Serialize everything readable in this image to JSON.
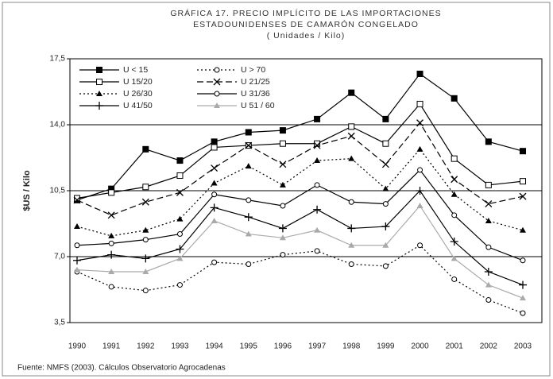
{
  "chart_data": {
    "type": "line",
    "title": [
      "GRÁFICA 17. PRECIO IMPLÍCITO DE LAS IMPORTACIONES",
      "ESTADOUNIDENSES DE CAMARÓN CONGELADO",
      "( Unidades / Kilo)"
    ],
    "y_label": "$US / Kilo",
    "source": "Fuente: NMFS (2003). Cálculos Observatorio Agrocadenas",
    "categories": [
      "1990",
      "1991",
      "1992",
      "1993",
      "1994",
      "1995",
      "1996",
      "1997",
      "1998",
      "1999",
      "2000",
      "2001",
      "2002",
      "2003"
    ],
    "ylim": [
      3.5,
      17.5
    ],
    "yticks": [
      {
        "value": 3.5,
        "label": "3,5"
      },
      {
        "value": 7.0,
        "label": "7,0"
      },
      {
        "value": 10.5,
        "label": "10,5"
      },
      {
        "value": 14.0,
        "label": "14,0"
      },
      {
        "value": 17.5,
        "label": "17,5"
      }
    ],
    "grid": true,
    "legend": "top-left",
    "series": [
      {
        "name": "U < 15",
        "color": "#000000",
        "dash": "",
        "marker": "square-filled",
        "values": [
          10.0,
          10.6,
          12.7,
          12.1,
          13.1,
          13.6,
          13.7,
          14.3,
          15.7,
          14.3,
          16.7,
          15.4,
          13.1,
          12.6
        ]
      },
      {
        "name": "U > 70",
        "color": "#000000",
        "dash": "2,3",
        "marker": "circle-open",
        "values": [
          6.2,
          5.4,
          5.2,
          5.5,
          6.7,
          6.6,
          7.1,
          7.3,
          6.6,
          6.5,
          7.6,
          5.8,
          4.7,
          4.0
        ]
      },
      {
        "name": "U 15/20",
        "color": "#000000",
        "dash": "",
        "marker": "square-open",
        "values": [
          10.1,
          10.4,
          10.7,
          11.3,
          12.8,
          12.9,
          13.0,
          13.0,
          13.9,
          13.0,
          15.1,
          12.2,
          10.8,
          11.0
        ]
      },
      {
        "name": "U 21/25",
        "color": "#000000",
        "dash": "8,4",
        "marker": "x",
        "values": [
          10.0,
          9.2,
          9.9,
          10.4,
          11.7,
          12.9,
          11.9,
          12.9,
          13.4,
          11.9,
          14.1,
          11.1,
          9.8,
          10.2
        ]
      },
      {
        "name": "U 26/30",
        "color": "#000000",
        "dash": "2,3",
        "marker": "triangle-filled",
        "values": [
          8.6,
          8.1,
          8.4,
          9.0,
          10.9,
          11.8,
          10.8,
          12.1,
          12.2,
          10.6,
          12.7,
          10.3,
          8.9,
          8.4
        ]
      },
      {
        "name": "U 31/36",
        "color": "#000000",
        "dash": "",
        "marker": "circle-open",
        "values": [
          7.6,
          7.7,
          7.9,
          8.2,
          10.3,
          10.0,
          9.7,
          10.8,
          9.9,
          9.8,
          11.6,
          9.2,
          7.5,
          6.8
        ]
      },
      {
        "name": "U 41/50",
        "color": "#000000",
        "dash": "",
        "marker": "plus",
        "values": [
          6.8,
          7.1,
          6.9,
          7.4,
          9.6,
          9.1,
          8.5,
          9.5,
          8.5,
          8.6,
          10.5,
          7.8,
          6.2,
          5.5
        ]
      },
      {
        "name": "U 51 / 60",
        "color": "#aaaaaa",
        "dash": "",
        "marker": "triangle-filled",
        "values": [
          6.3,
          6.2,
          6.2,
          6.9,
          8.9,
          8.2,
          8.0,
          8.4,
          7.6,
          7.6,
          9.7,
          6.9,
          5.5,
          4.8
        ]
      }
    ]
  }
}
